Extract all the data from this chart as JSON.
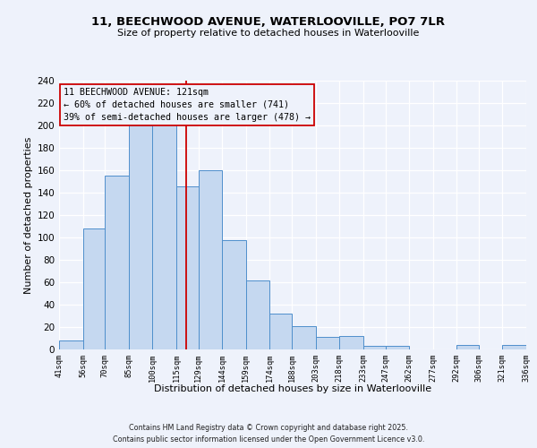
{
  "title1": "11, BEECHWOOD AVENUE, WATERLOOVILLE, PO7 7LR",
  "title2": "Size of property relative to detached houses in Waterlooville",
  "xlabel": "Distribution of detached houses by size in Waterlooville",
  "ylabel": "Number of detached properties",
  "bar_left_edges": [
    41,
    56,
    70,
    85,
    100,
    115,
    129,
    144,
    159,
    174,
    188,
    203,
    218,
    233,
    247,
    262,
    277,
    292,
    306,
    321
  ],
  "bar_rights": [
    56,
    70,
    85,
    100,
    115,
    129,
    144,
    159,
    174,
    188,
    203,
    218,
    233,
    247,
    262,
    277,
    292,
    306,
    321,
    336
  ],
  "bar_heights": [
    8,
    108,
    155,
    200,
    201,
    146,
    160,
    98,
    62,
    32,
    21,
    11,
    12,
    3,
    3,
    0,
    0,
    4,
    0,
    4
  ],
  "bar_color": "#c5d8f0",
  "bar_edgecolor": "#4f8fcc",
  "xlim_left": 41,
  "xlim_right": 336,
  "ylim_top": 240,
  "yticks": [
    0,
    20,
    40,
    60,
    80,
    100,
    120,
    140,
    160,
    180,
    200,
    220,
    240
  ],
  "xtick_labels": [
    "41sqm",
    "56sqm",
    "70sqm",
    "85sqm",
    "100sqm",
    "115sqm",
    "129sqm",
    "144sqm",
    "159sqm",
    "174sqm",
    "188sqm",
    "203sqm",
    "218sqm",
    "233sqm",
    "247sqm",
    "262sqm",
    "277sqm",
    "292sqm",
    "306sqm",
    "321sqm",
    "336sqm"
  ],
  "xtick_positions": [
    41,
    56,
    70,
    85,
    100,
    115,
    129,
    144,
    159,
    174,
    188,
    203,
    218,
    233,
    247,
    262,
    277,
    292,
    306,
    321,
    336
  ],
  "vline_x": 121,
  "vline_color": "#cc0000",
  "annotation_line1": "11 BEECHWOOD AVENUE: 121sqm",
  "annotation_line2": "← 60% of detached houses are smaller (741)",
  "annotation_line3": "39% of semi-detached houses are larger (478) →",
  "bg_color": "#eef2fb",
  "grid_color": "#ffffff",
  "footnote1": "Contains HM Land Registry data © Crown copyright and database right 2025.",
  "footnote2": "Contains public sector information licensed under the Open Government Licence v3.0."
}
